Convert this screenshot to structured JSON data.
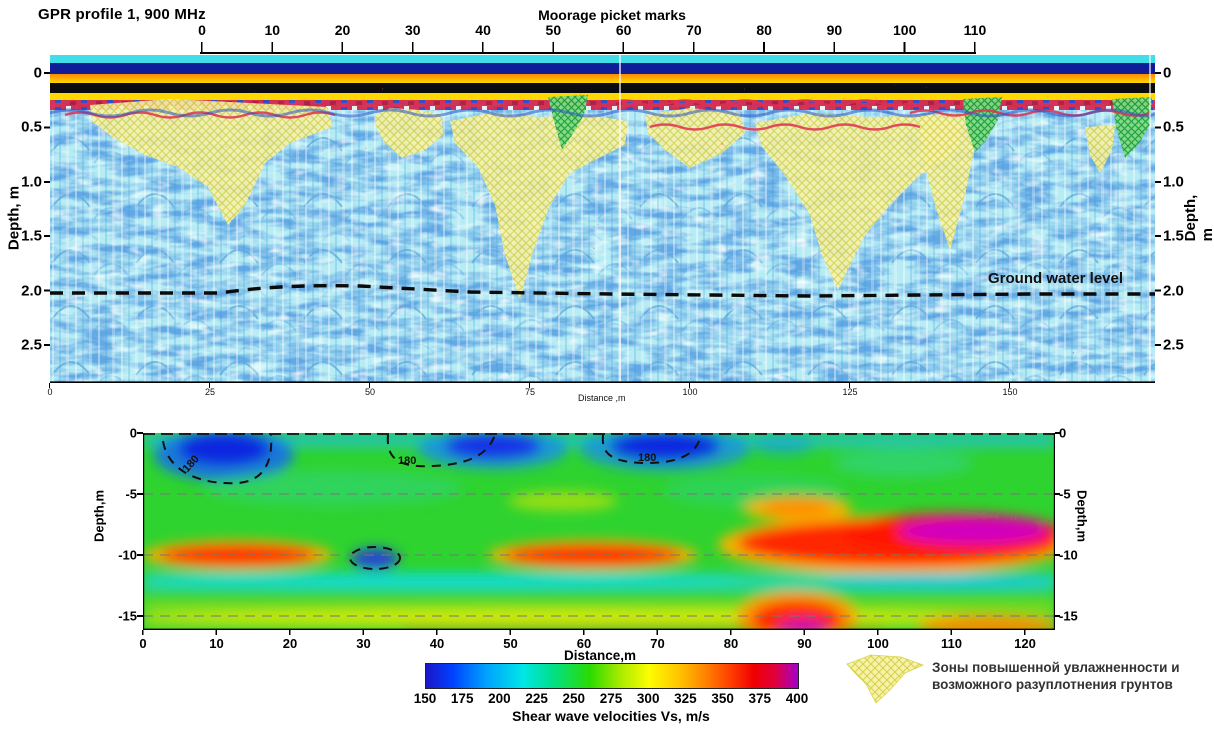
{
  "figure": {
    "title": "GPR profile 1,  900 MHz"
  },
  "gpr_panel": {
    "top_axis": {
      "label": "Moorage picket marks",
      "ticks": [
        "0",
        "10",
        "20",
        "30",
        "40",
        "50",
        "60",
        "70",
        "80",
        "90",
        "100",
        "110"
      ]
    },
    "depth_axis": {
      "label": "Depth, m",
      "ticks": [
        "0",
        "0.5",
        "1.0",
        "1.5",
        "2.0",
        "2.5"
      ]
    },
    "bottom_axis": {
      "label": "Distance ,m",
      "ticks": [
        "0",
        "25",
        "50",
        "75",
        "100",
        "125",
        "150"
      ]
    },
    "groundwater_label": "Ground water level",
    "groundwater_depth_m": 2.0
  },
  "velocity_panel": {
    "x_axis": {
      "label": "Distance,m",
      "ticks": [
        "0",
        "10",
        "20",
        "30",
        "40",
        "50",
        "60",
        "70",
        "80",
        "90",
        "100",
        "110",
        "120"
      ]
    },
    "depth_axis": {
      "label": "Depth,m",
      "ticks": [
        "0",
        "-5",
        "-10",
        "-15"
      ]
    },
    "contour_label": "180"
  },
  "colorbar": {
    "ticks": [
      "150",
      "175",
      "200",
      "225",
      "250",
      "275",
      "300",
      "325",
      "350",
      "375",
      "400"
    ],
    "label": "Shear wave velocities Vs, m/s",
    "min": 150,
    "max": 400,
    "units": "m/s"
  },
  "legend": {
    "line1": "Зоны повышенной увлажненности  и",
    "line2": "возможного разуплотнения грунтов",
    "swatch": "yellow-crosshatch-zone"
  },
  "chart_data": [
    {
      "type": "heatmap",
      "title": "GPR profile 1, 900 MHz radargram",
      "x_axis_top": {
        "label": "Moorage picket marks",
        "range": [
          0,
          110
        ],
        "tick_step": 10
      },
      "x_axis_bottom": {
        "label": "Distance ,m",
        "range": [
          0,
          160
        ],
        "ticks": [
          0,
          25,
          50,
          75,
          100,
          125,
          150
        ]
      },
      "y_axis": {
        "label": "Depth, m",
        "range": [
          0,
          2.8
        ],
        "ticks": [
          0,
          0.5,
          1.0,
          1.5,
          2.0,
          2.5
        ]
      },
      "annotations": [
        {
          "text": "Ground water level",
          "type": "dashed-line",
          "depth_m": 2.0
        }
      ],
      "interpreted_zones": {
        "description": "yellow hatched = zones of increased moisture / possible soil decompaction",
        "zones_x_m": [
          [
            6,
            41
          ],
          [
            47,
            57
          ],
          [
            58,
            84
          ],
          [
            86,
            100
          ],
          [
            102,
            132
          ],
          [
            126,
            134
          ],
          [
            150,
            155
          ]
        ],
        "zones_depth_m": [
          [
            0.4,
            1.6
          ],
          [
            0.5,
            1.0
          ],
          [
            0.55,
            2.25
          ],
          [
            0.5,
            1.05
          ],
          [
            0.55,
            2.15
          ],
          [
            0.45,
            1.85
          ],
          [
            0.65,
            1.2
          ]
        ]
      }
    },
    {
      "type": "heatmap",
      "title": "Shear wave velocity section",
      "x_axis": {
        "label": "Distance,m",
        "range": [
          0,
          124
        ],
        "tick_step": 10
      },
      "y_axis": {
        "label": "Depth,m",
        "range": [
          0,
          -16
        ],
        "ticks": [
          0,
          -5,
          -10,
          -15
        ]
      },
      "value_axis": {
        "label": "Shear wave velocities Vs, m/s",
        "range": [
          150,
          400
        ],
        "tick_step": 25
      },
      "contours": [
        {
          "value": 180,
          "style": "dashed",
          "low_velocity_zones": [
            {
              "x_m": [
                5,
                18
              ],
              "depth_m": [
                0,
                -4
              ]
            },
            {
              "x_m": [
                38,
                53
              ],
              "depth_m": [
                0,
                -3
              ]
            },
            {
              "x_m": [
                60,
                77
              ],
              "depth_m": [
                0,
                -3
              ]
            },
            {
              "x_m": [
                29,
                34
              ],
              "depth_m": [
                -9.5,
                -11.5
              ]
            }
          ]
        }
      ],
      "features": [
        {
          "name": "background",
          "vs_ms": 260
        },
        {
          "name": "high-velocity band",
          "x_m": [
            2,
            22
          ],
          "depth_m": [
            -9,
            -10.8
          ],
          "vs_ms": 355
        },
        {
          "name": "high-velocity band",
          "x_m": [
            46,
            75
          ],
          "depth_m": [
            -9,
            -10.8
          ],
          "vs_ms": 355
        },
        {
          "name": "very high velocity body",
          "x_m": [
            96,
            124
          ],
          "depth_m": [
            -5.5,
            -10
          ],
          "vs_ms": 395
        },
        {
          "name": "orange patch",
          "x_m": [
            84,
            95
          ],
          "depth_m": [
            -5.5,
            -7
          ],
          "vs_ms": 330
        },
        {
          "name": "low-velocity band",
          "x_m": [
            0,
            124
          ],
          "depth_m": [
            -11.3,
            -13
          ],
          "vs_ms": 215
        },
        {
          "name": "bottom high-velocity blob",
          "x_m": [
            84,
            95
          ],
          "depth_m": [
            -13.5,
            -16
          ],
          "vs_ms": 370
        },
        {
          "name": "bottom orange patch",
          "x_m": [
            106,
            122
          ],
          "depth_m": [
            -15,
            -16
          ],
          "vs_ms": 325
        },
        {
          "name": "bottom yellow-green layer",
          "x_m": [
            0,
            124
          ],
          "depth_m": [
            -14.5,
            -16
          ],
          "vs_ms": 300
        }
      ]
    }
  ]
}
